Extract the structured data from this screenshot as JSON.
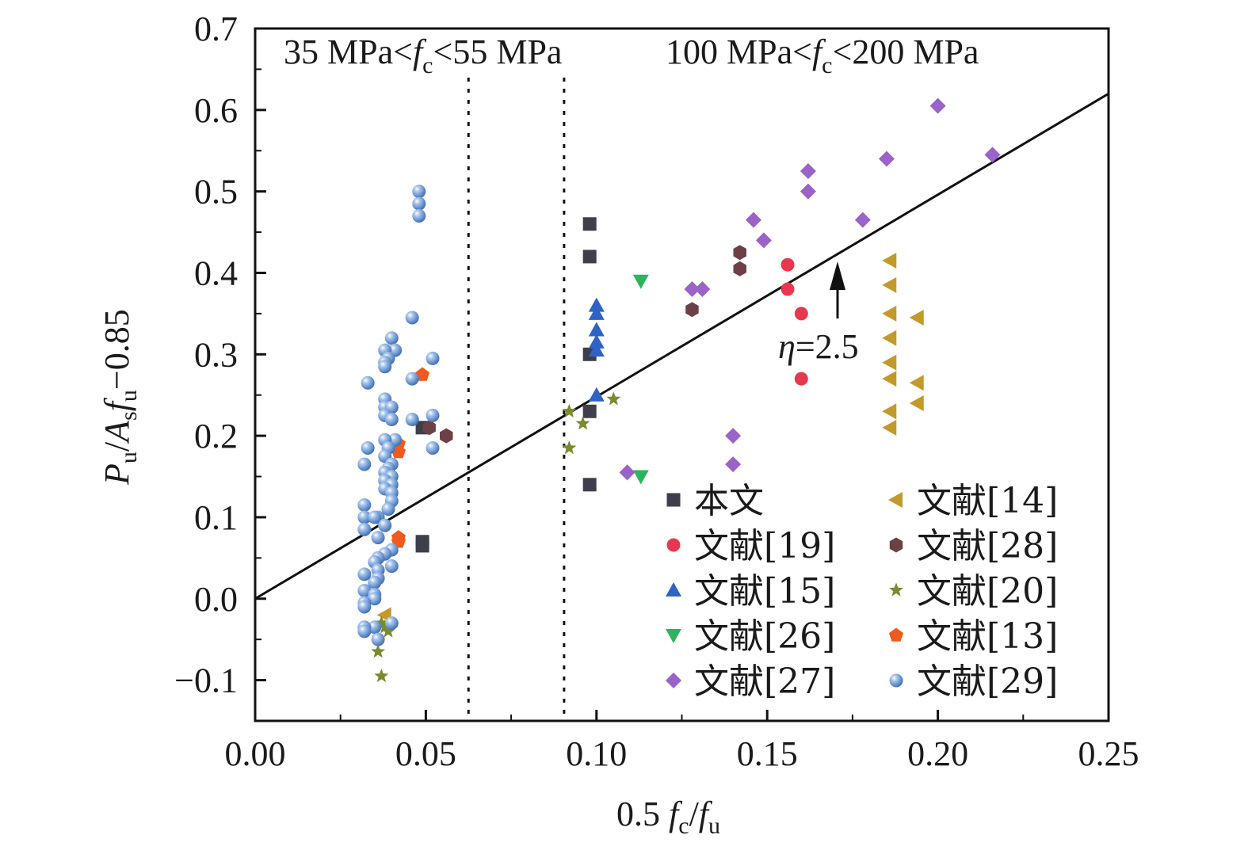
{
  "chart_data": {
    "type": "scatter",
    "title": "",
    "xlabel": {
      "lead": "0.5 ",
      "f1": "f",
      "s1": "c",
      "slash": "/",
      "f2": "f",
      "s2": "u"
    },
    "ylabel": {
      "P": "P",
      "Psub": "u",
      "slash": "/",
      "A": "A",
      "Asub": "s",
      "f": "f",
      "fsub": "u",
      "tail": "−0.85"
    },
    "xlim": [
      0,
      0.25
    ],
    "ylim": [
      -0.15,
      0.7
    ],
    "xticks": [
      "0.00",
      "0.05",
      "0.10",
      "0.15",
      "0.20",
      "0.25"
    ],
    "xtick_values": [
      0,
      0.05,
      0.1,
      0.15,
      0.2,
      0.25
    ],
    "yticks": [
      "−0.1",
      "0.0",
      "0.1",
      "0.2",
      "0.3",
      "0.4",
      "0.5",
      "0.6",
      "0.7"
    ],
    "ytick_values": [
      -0.1,
      0.0,
      0.1,
      0.2,
      0.3,
      0.4,
      0.5,
      0.6,
      0.7
    ],
    "grid": false,
    "legend_position": "bottom-right",
    "fit_line": {
      "x": [
        0,
        0.25
      ],
      "y": [
        0,
        0.62
      ]
    },
    "fit_label": {
      "eta": "η",
      "rest": "=2.5"
    },
    "fit_label_at": [
      0.17,
      0.42
    ],
    "vlines_x": [
      0.0625,
      0.0905
    ],
    "region_labels": [
      {
        "lead": "35 MPa<",
        "f": "f",
        "sub": "c",
        "tail": "<55 MPa"
      },
      {
        "lead": "100 MPa<",
        "f": "f",
        "sub": "c",
        "tail": "<200 MPa"
      }
    ],
    "series": [
      {
        "name": "本文",
        "marker": "square",
        "color": "#3d3f4a",
        "x": [
          0.098,
          0.098,
          0.098,
          0.098,
          0.098,
          0.049,
          0.049,
          0.049
        ],
        "y": [
          0.46,
          0.42,
          0.3,
          0.23,
          0.14,
          0.21,
          0.07,
          0.065
        ]
      },
      {
        "name": "文献[19]",
        "marker": "circle",
        "color": "#e8384f",
        "x": [
          0.156,
          0.156,
          0.16,
          0.16
        ],
        "y": [
          0.41,
          0.38,
          0.35,
          0.27
        ]
      },
      {
        "name": "文献[15]",
        "marker": "triangle-up",
        "color": "#2e62c4",
        "x": [
          0.1,
          0.1,
          0.1,
          0.1,
          0.1,
          0.1
        ],
        "y": [
          0.36,
          0.35,
          0.33,
          0.315,
          0.305,
          0.25
        ]
      },
      {
        "name": "文献[26]",
        "marker": "triangle-down",
        "color": "#2eb35e",
        "x": [
          0.113,
          0.113
        ],
        "y": [
          0.39,
          0.15
        ]
      },
      {
        "name": "文献[27]",
        "marker": "diamond",
        "color": "#9b62c8",
        "x": [
          0.2,
          0.216,
          0.185,
          0.162,
          0.162,
          0.146,
          0.149,
          0.178,
          0.128,
          0.131,
          0.14,
          0.14,
          0.109
        ],
        "y": [
          0.605,
          0.545,
          0.54,
          0.525,
          0.5,
          0.465,
          0.44,
          0.465,
          0.38,
          0.38,
          0.2,
          0.165,
          0.155
        ]
      },
      {
        "name": "文献[14]",
        "marker": "triangle-left",
        "color": "#c29a2a",
        "x": [
          0.186,
          0.186,
          0.186,
          0.186,
          0.186,
          0.186,
          0.186,
          0.186,
          0.194,
          0.194,
          0.194,
          0.038
        ],
        "y": [
          0.415,
          0.385,
          0.35,
          0.32,
          0.29,
          0.27,
          0.23,
          0.21,
          0.345,
          0.265,
          0.24,
          -0.02
        ]
      },
      {
        "name": "文献[28]",
        "marker": "hexagon",
        "color": "#6b4147",
        "x": [
          0.142,
          0.142,
          0.128,
          0.051,
          0.056
        ],
        "y": [
          0.425,
          0.405,
          0.355,
          0.21,
          0.2
        ]
      },
      {
        "name": "文献[20]",
        "marker": "star",
        "color": "#7a8a2e",
        "x": [
          0.092,
          0.096,
          0.105,
          0.092,
          0.037,
          0.038,
          0.039,
          0.036,
          0.037
        ],
        "y": [
          0.23,
          0.215,
          0.245,
          0.185,
          -0.03,
          -0.035,
          -0.04,
          -0.065,
          -0.095
        ]
      },
      {
        "name": "文献[13]",
        "marker": "pentagon",
        "color": "#f05a1e",
        "x": [
          0.049,
          0.042,
          0.042,
          0.042,
          0.042
        ],
        "y": [
          0.275,
          0.19,
          0.18,
          0.075,
          0.07
        ]
      },
      {
        "name": "文献[29]",
        "marker": "circle",
        "color": "#6a9ad6",
        "x": [
          0.048,
          0.048,
          0.048,
          0.046,
          0.052,
          0.046,
          0.052,
          0.046,
          0.052,
          0.04,
          0.041,
          0.038,
          0.039,
          0.038,
          0.038,
          0.033,
          0.038,
          0.038,
          0.04,
          0.038,
          0.04,
          0.041,
          0.038,
          0.039,
          0.038,
          0.04,
          0.033,
          0.032,
          0.039,
          0.038,
          0.04,
          0.038,
          0.04,
          0.038,
          0.04,
          0.04,
          0.039,
          0.032,
          0.036,
          0.032,
          0.035,
          0.038,
          0.032,
          0.036,
          0.04,
          0.038,
          0.036,
          0.04,
          0.035,
          0.036,
          0.036,
          0.035,
          0.032,
          0.032,
          0.035,
          0.035,
          0.032,
          0.032,
          0.04,
          0.035,
          0.032,
          0.032,
          0.036
        ],
        "y": [
          0.5,
          0.485,
          0.47,
          0.345,
          0.295,
          0.27,
          0.225,
          0.22,
          0.185,
          0.32,
          0.305,
          0.305,
          0.295,
          0.29,
          0.285,
          0.265,
          0.245,
          0.235,
          0.235,
          0.225,
          0.22,
          0.195,
          0.195,
          0.185,
          0.175,
          0.165,
          0.185,
          0.165,
          0.16,
          0.155,
          0.15,
          0.145,
          0.14,
          0.135,
          0.13,
          0.12,
          0.11,
          0.115,
          0.1,
          0.1,
          0.1,
          0.09,
          0.085,
          0.075,
          0.06,
          0.055,
          0.05,
          0.04,
          0.045,
          0.035,
          0.025,
          0.02,
          0.03,
          0.01,
          0.005,
          0.0,
          -0.005,
          -0.01,
          -0.03,
          -0.035,
          -0.035,
          -0.04,
          -0.05
        ]
      }
    ]
  }
}
